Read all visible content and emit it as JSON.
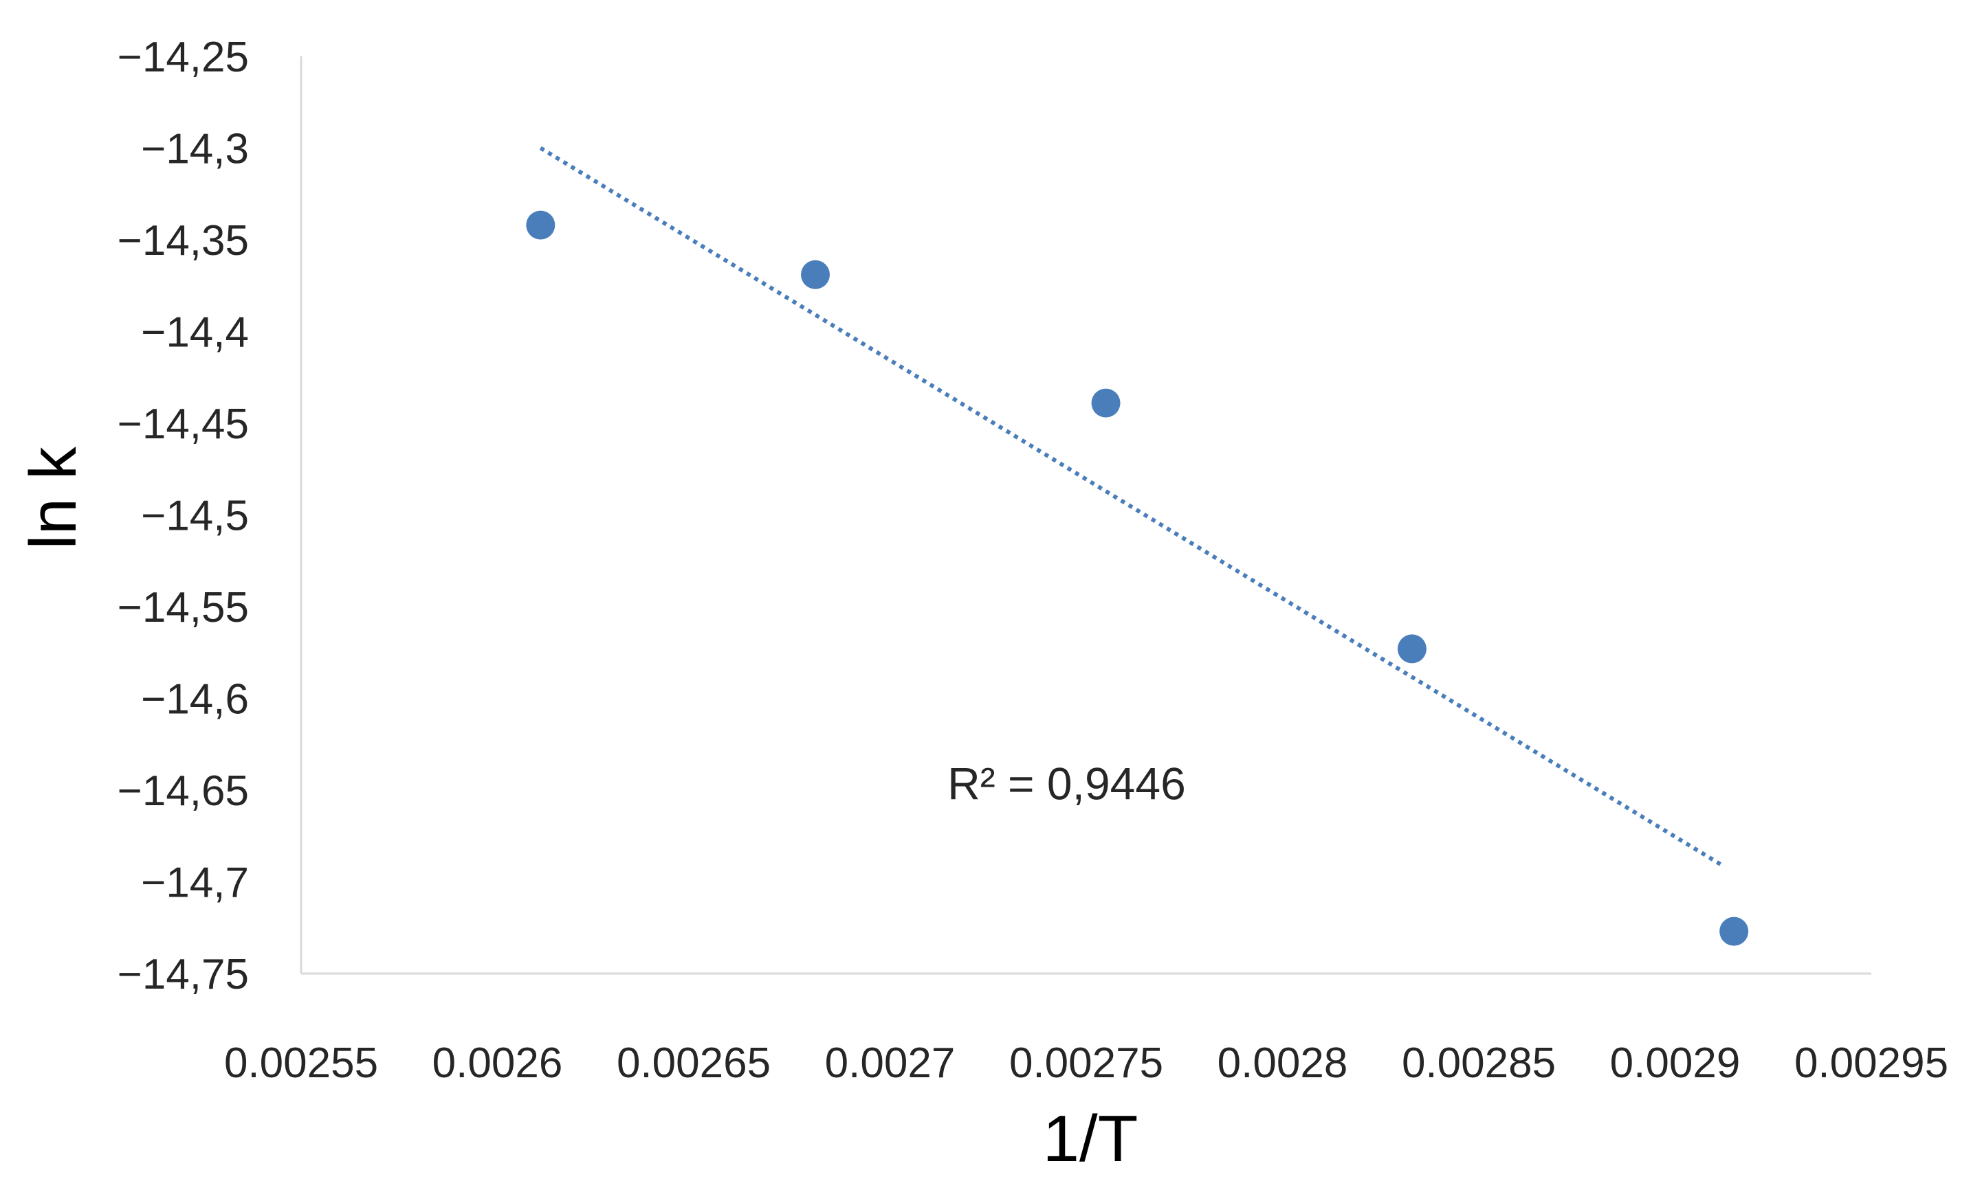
{
  "chart_data": {
    "type": "scatter",
    "xlabel": "1/T",
    "ylabel": "ln k",
    "xlim": [
      0.00255,
      0.00295
    ],
    "ylim": [
      -14.75,
      -14.25
    ],
    "x_ticks": [
      "0.00255",
      "0.0026",
      "0.00265",
      "0.0027",
      "0.00275",
      "0.0028",
      "0.00285",
      "0.0029",
      "0.00295"
    ],
    "y_ticks": [
      "-14,25",
      "-14,3",
      "-14,35",
      "-14,4",
      "-14,45",
      "-14,5",
      "-14,55",
      "-14,6",
      "-14,65",
      "-14,7",
      "-14,75"
    ],
    "series": [
      {
        "values": [
          {
            "x": 0.002611,
            "y": -14.342
          },
          {
            "x": 0.002681,
            "y": -14.369
          },
          {
            "x": 0.002755,
            "y": -14.439
          },
          {
            "x": 0.002833,
            "y": -14.573
          },
          {
            "x": 0.002915,
            "y": -14.727
          }
        ],
        "color": "#4a7ebb"
      }
    ],
    "trendline": {
      "style": "dotted",
      "color": "#4a7ebb",
      "x_start": 0.002611,
      "y_start": -14.3,
      "x_end": 0.002912,
      "y_end": -14.691
    },
    "annotations": [
      {
        "text": "R² = 0,9446",
        "x": 0.002745,
        "y": -14.655
      }
    ],
    "grid": false,
    "legend": "none"
  }
}
